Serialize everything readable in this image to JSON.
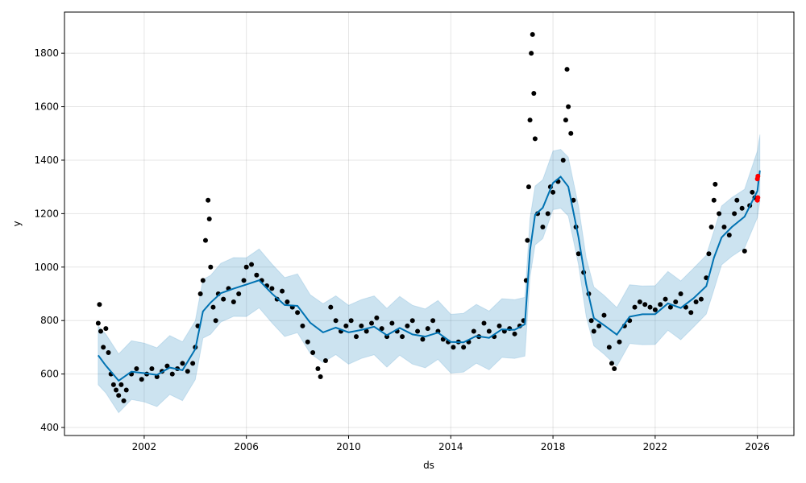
{
  "chart_data": {
    "type": "line",
    "title": "",
    "xlabel": "ds",
    "ylabel": "y",
    "xlim": [
      1998.88,
      2027.43
    ],
    "ylim": [
      370,
      1954
    ],
    "xticks": [
      2002,
      2006,
      2010,
      2014,
      2018,
      2022,
      2026
    ],
    "yticks": [
      400,
      600,
      800,
      1000,
      1200,
      1400,
      1600,
      1800
    ],
    "grid": true,
    "colors": {
      "forecast": "#0072B2",
      "observed": "#000000",
      "highlight": "#FF0000"
    },
    "forecast": [
      [
        2000.2,
        670
      ],
      [
        2000.5,
        620
      ],
      [
        2001.0,
        590
      ],
      [
        2001.5,
        600
      ],
      [
        2002.0,
        600
      ],
      [
        2002.5,
        610
      ],
      [
        2003.0,
        610
      ],
      [
        2003.5,
        620
      ],
      [
        2004.0,
        700
      ],
      [
        2004.3,
        820
      ],
      [
        2004.6,
        880
      ],
      [
        2005.0,
        900
      ],
      [
        2005.5,
        910
      ],
      [
        2006.0,
        950
      ],
      [
        2006.5,
        940
      ],
      [
        2007.0,
        900
      ],
      [
        2007.5,
        870
      ],
      [
        2008.0,
        840
      ],
      [
        2008.5,
        800
      ],
      [
        2009.0,
        760
      ],
      [
        2009.5,
        760
      ],
      [
        2010.0,
        770
      ],
      [
        2010.5,
        760
      ],
      [
        2011.0,
        770
      ],
      [
        2011.5,
        760
      ],
      [
        2012.0,
        760
      ],
      [
        2012.5,
        750
      ],
      [
        2013.0,
        750
      ],
      [
        2013.5,
        740
      ],
      [
        2014.0,
        730
      ],
      [
        2014.5,
        720
      ],
      [
        2015.0,
        730
      ],
      [
        2015.5,
        750
      ],
      [
        2016.0,
        760
      ],
      [
        2016.5,
        760
      ],
      [
        2016.9,
        800
      ],
      [
        2017.1,
        1050
      ],
      [
        2017.3,
        1200
      ],
      [
        2017.6,
        1230
      ],
      [
        2018.0,
        1300
      ],
      [
        2018.3,
        1350
      ],
      [
        2018.6,
        1300
      ],
      [
        2019.0,
        1100
      ],
      [
        2019.3,
        950
      ],
      [
        2019.6,
        800
      ],
      [
        2020.0,
        780
      ],
      [
        2020.5,
        760
      ],
      [
        2021.0,
        800
      ],
      [
        2021.5,
        830
      ],
      [
        2022.0,
        830
      ],
      [
        2022.5,
        850
      ],
      [
        2023.0,
        860
      ],
      [
        2023.5,
        880
      ],
      [
        2024.0,
        920
      ],
      [
        2024.3,
        1050
      ],
      [
        2024.6,
        1100
      ],
      [
        2025.0,
        1150
      ],
      [
        2025.5,
        1200
      ],
      [
        2026.0,
        1270
      ],
      [
        2026.1,
        1370
      ]
    ],
    "interval_halfwidth": 110,
    "observed": [
      [
        2000.2,
        790
      ],
      [
        2000.25,
        860
      ],
      [
        2000.3,
        760
      ],
      [
        2000.4,
        700
      ],
      [
        2000.5,
        770
      ],
      [
        2000.6,
        680
      ],
      [
        2000.7,
        600
      ],
      [
        2000.8,
        560
      ],
      [
        2000.9,
        540
      ],
      [
        2001.0,
        520
      ],
      [
        2001.1,
        560
      ],
      [
        2001.2,
        500
      ],
      [
        2001.3,
        540
      ],
      [
        2001.5,
        600
      ],
      [
        2001.7,
        620
      ],
      [
        2001.9,
        580
      ],
      [
        2002.1,
        600
      ],
      [
        2002.3,
        620
      ],
      [
        2002.5,
        590
      ],
      [
        2002.7,
        610
      ],
      [
        2002.9,
        630
      ],
      [
        2003.1,
        600
      ],
      [
        2003.3,
        620
      ],
      [
        2003.5,
        640
      ],
      [
        2003.7,
        610
      ],
      [
        2003.9,
        640
      ],
      [
        2004.0,
        700
      ],
      [
        2004.1,
        780
      ],
      [
        2004.2,
        900
      ],
      [
        2004.3,
        950
      ],
      [
        2004.4,
        1100
      ],
      [
        2004.5,
        1250
      ],
      [
        2004.55,
        1180
      ],
      [
        2004.6,
        1000
      ],
      [
        2004.7,
        850
      ],
      [
        2004.8,
        800
      ],
      [
        2004.9,
        900
      ],
      [
        2005.1,
        880
      ],
      [
        2005.3,
        920
      ],
      [
        2005.5,
        870
      ],
      [
        2005.7,
        900
      ],
      [
        2005.9,
        950
      ],
      [
        2006.0,
        1000
      ],
      [
        2006.2,
        1010
      ],
      [
        2006.4,
        970
      ],
      [
        2006.6,
        950
      ],
      [
        2006.8,
        930
      ],
      [
        2007.0,
        920
      ],
      [
        2007.2,
        880
      ],
      [
        2007.4,
        910
      ],
      [
        2007.6,
        870
      ],
      [
        2007.8,
        850
      ],
      [
        2008.0,
        830
      ],
      [
        2008.2,
        780
      ],
      [
        2008.4,
        720
      ],
      [
        2008.6,
        680
      ],
      [
        2008.8,
        620
      ],
      [
        2008.9,
        590
      ],
      [
        2009.1,
        650
      ],
      [
        2009.3,
        850
      ],
      [
        2009.5,
        800
      ],
      [
        2009.7,
        760
      ],
      [
        2009.9,
        780
      ],
      [
        2010.1,
        800
      ],
      [
        2010.3,
        740
      ],
      [
        2010.5,
        780
      ],
      [
        2010.7,
        760
      ],
      [
        2010.9,
        790
      ],
      [
        2011.1,
        810
      ],
      [
        2011.3,
        770
      ],
      [
        2011.5,
        740
      ],
      [
        2011.7,
        790
      ],
      [
        2011.9,
        760
      ],
      [
        2012.1,
        740
      ],
      [
        2012.3,
        780
      ],
      [
        2012.5,
        800
      ],
      [
        2012.7,
        760
      ],
      [
        2012.9,
        730
      ],
      [
        2013.1,
        770
      ],
      [
        2013.3,
        800
      ],
      [
        2013.5,
        760
      ],
      [
        2013.7,
        730
      ],
      [
        2013.9,
        720
      ],
      [
        2014.1,
        700
      ],
      [
        2014.3,
        720
      ],
      [
        2014.5,
        700
      ],
      [
        2014.7,
        720
      ],
      [
        2014.9,
        760
      ],
      [
        2015.1,
        740
      ],
      [
        2015.3,
        790
      ],
      [
        2015.5,
        760
      ],
      [
        2015.7,
        740
      ],
      [
        2015.9,
        780
      ],
      [
        2016.1,
        760
      ],
      [
        2016.3,
        770
      ],
      [
        2016.5,
        750
      ],
      [
        2016.7,
        780
      ],
      [
        2016.85,
        800
      ],
      [
        2016.95,
        950
      ],
      [
        2017.0,
        1100
      ],
      [
        2017.05,
        1300
      ],
      [
        2017.1,
        1550
      ],
      [
        2017.15,
        1800
      ],
      [
        2017.2,
        1870
      ],
      [
        2017.25,
        1650
      ],
      [
        2017.3,
        1480
      ],
      [
        2017.4,
        1200
      ],
      [
        2017.6,
        1150
      ],
      [
        2017.8,
        1200
      ],
      [
        2017.9,
        1300
      ],
      [
        2018.0,
        1280
      ],
      [
        2018.2,
        1320
      ],
      [
        2018.4,
        1400
      ],
      [
        2018.5,
        1550
      ],
      [
        2018.55,
        1740
      ],
      [
        2018.6,
        1600
      ],
      [
        2018.7,
        1500
      ],
      [
        2018.8,
        1250
      ],
      [
        2018.9,
        1150
      ],
      [
        2019.0,
        1050
      ],
      [
        2019.2,
        980
      ],
      [
        2019.4,
        900
      ],
      [
        2019.5,
        800
      ],
      [
        2019.6,
        760
      ],
      [
        2019.8,
        780
      ],
      [
        2020.0,
        820
      ],
      [
        2020.2,
        700
      ],
      [
        2020.3,
        640
      ],
      [
        2020.4,
        620
      ],
      [
        2020.6,
        720
      ],
      [
        2020.8,
        780
      ],
      [
        2021.0,
        800
      ],
      [
        2021.2,
        850
      ],
      [
        2021.4,
        870
      ],
      [
        2021.6,
        860
      ],
      [
        2021.8,
        850
      ],
      [
        2022.0,
        840
      ],
      [
        2022.2,
        860
      ],
      [
        2022.4,
        880
      ],
      [
        2022.6,
        850
      ],
      [
        2022.8,
        870
      ],
      [
        2023.0,
        900
      ],
      [
        2023.2,
        850
      ],
      [
        2023.4,
        830
      ],
      [
        2023.6,
        870
      ],
      [
        2023.8,
        880
      ],
      [
        2024.0,
        960
      ],
      [
        2024.1,
        1050
      ],
      [
        2024.2,
        1150
      ],
      [
        2024.3,
        1250
      ],
      [
        2024.35,
        1310
      ],
      [
        2024.5,
        1200
      ],
      [
        2024.7,
        1150
      ],
      [
        2024.9,
        1120
      ],
      [
        2025.1,
        1200
      ],
      [
        2025.2,
        1250
      ],
      [
        2025.4,
        1220
      ],
      [
        2025.5,
        1060
      ],
      [
        2025.7,
        1230
      ],
      [
        2025.8,
        1280
      ],
      [
        2025.9,
        1260
      ]
    ],
    "highlighted": [
      [
        2026.0,
        1250
      ],
      [
        2026.0,
        1330
      ],
      [
        2026.02,
        1340
      ],
      [
        2026.02,
        1260
      ]
    ]
  }
}
